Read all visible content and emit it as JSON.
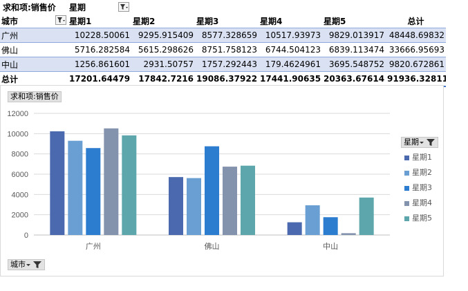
{
  "header": {
    "value_label": "求和项:销售价",
    "column_field": "星期"
  },
  "table": {
    "row_header": "城市",
    "columns": [
      "星期1",
      "星期2",
      "星期3",
      "星期4",
      "星期5",
      "总计"
    ],
    "rows": [
      {
        "city": "广州",
        "values": [
          "10228.50061",
          "9295.915409",
          "8577.328659",
          "10517.93973",
          "9829.013917",
          "48448.69832"
        ]
      },
      {
        "city": "佛山",
        "values": [
          "5716.282584",
          "5615.298626",
          "8751.758123",
          "6744.504123",
          "6839.113474",
          "33666.95693"
        ]
      },
      {
        "city": "中山",
        "values": [
          "1256.861601",
          "2931.50757",
          "1757.292443",
          "179.4624961",
          "3695.548752",
          "9820.672861"
        ]
      }
    ],
    "total": {
      "label": "总计",
      "values": [
        "17201.64479",
        "17842.7216",
        "19086.37922",
        "17441.90635",
        "20363.67614",
        "91936.32811"
      ]
    }
  },
  "chart_field_buttons": {
    "value": "求和项:销售价",
    "legend": "星期",
    "axis": "城市"
  },
  "chart_data": {
    "type": "bar",
    "categories": [
      "广州",
      "佛山",
      "中山"
    ],
    "series": [
      {
        "name": "星期1",
        "values": [
          10228.50061,
          5716.282584,
          1256.861601
        ]
      },
      {
        "name": "星期2",
        "values": [
          9295.915409,
          5615.298626,
          2931.50757
        ]
      },
      {
        "name": "星期3",
        "values": [
          8577.328659,
          8751.758123,
          1757.292443
        ]
      },
      {
        "name": "星期4",
        "values": [
          10517.93973,
          6744.504123,
          179.4624961
        ]
      },
      {
        "name": "星期5",
        "values": [
          9829.013917,
          6839.113474,
          3695.548752
        ]
      }
    ],
    "colors": [
      "#4a69ae",
      "#6a9fd4",
      "#2c7cd0",
      "#8493ad",
      "#5ca6ac"
    ],
    "ylim": [
      0,
      12000
    ],
    "yticks": [
      0,
      2000,
      4000,
      6000,
      8000,
      10000,
      12000
    ],
    "grid": true,
    "legend": "right"
  }
}
